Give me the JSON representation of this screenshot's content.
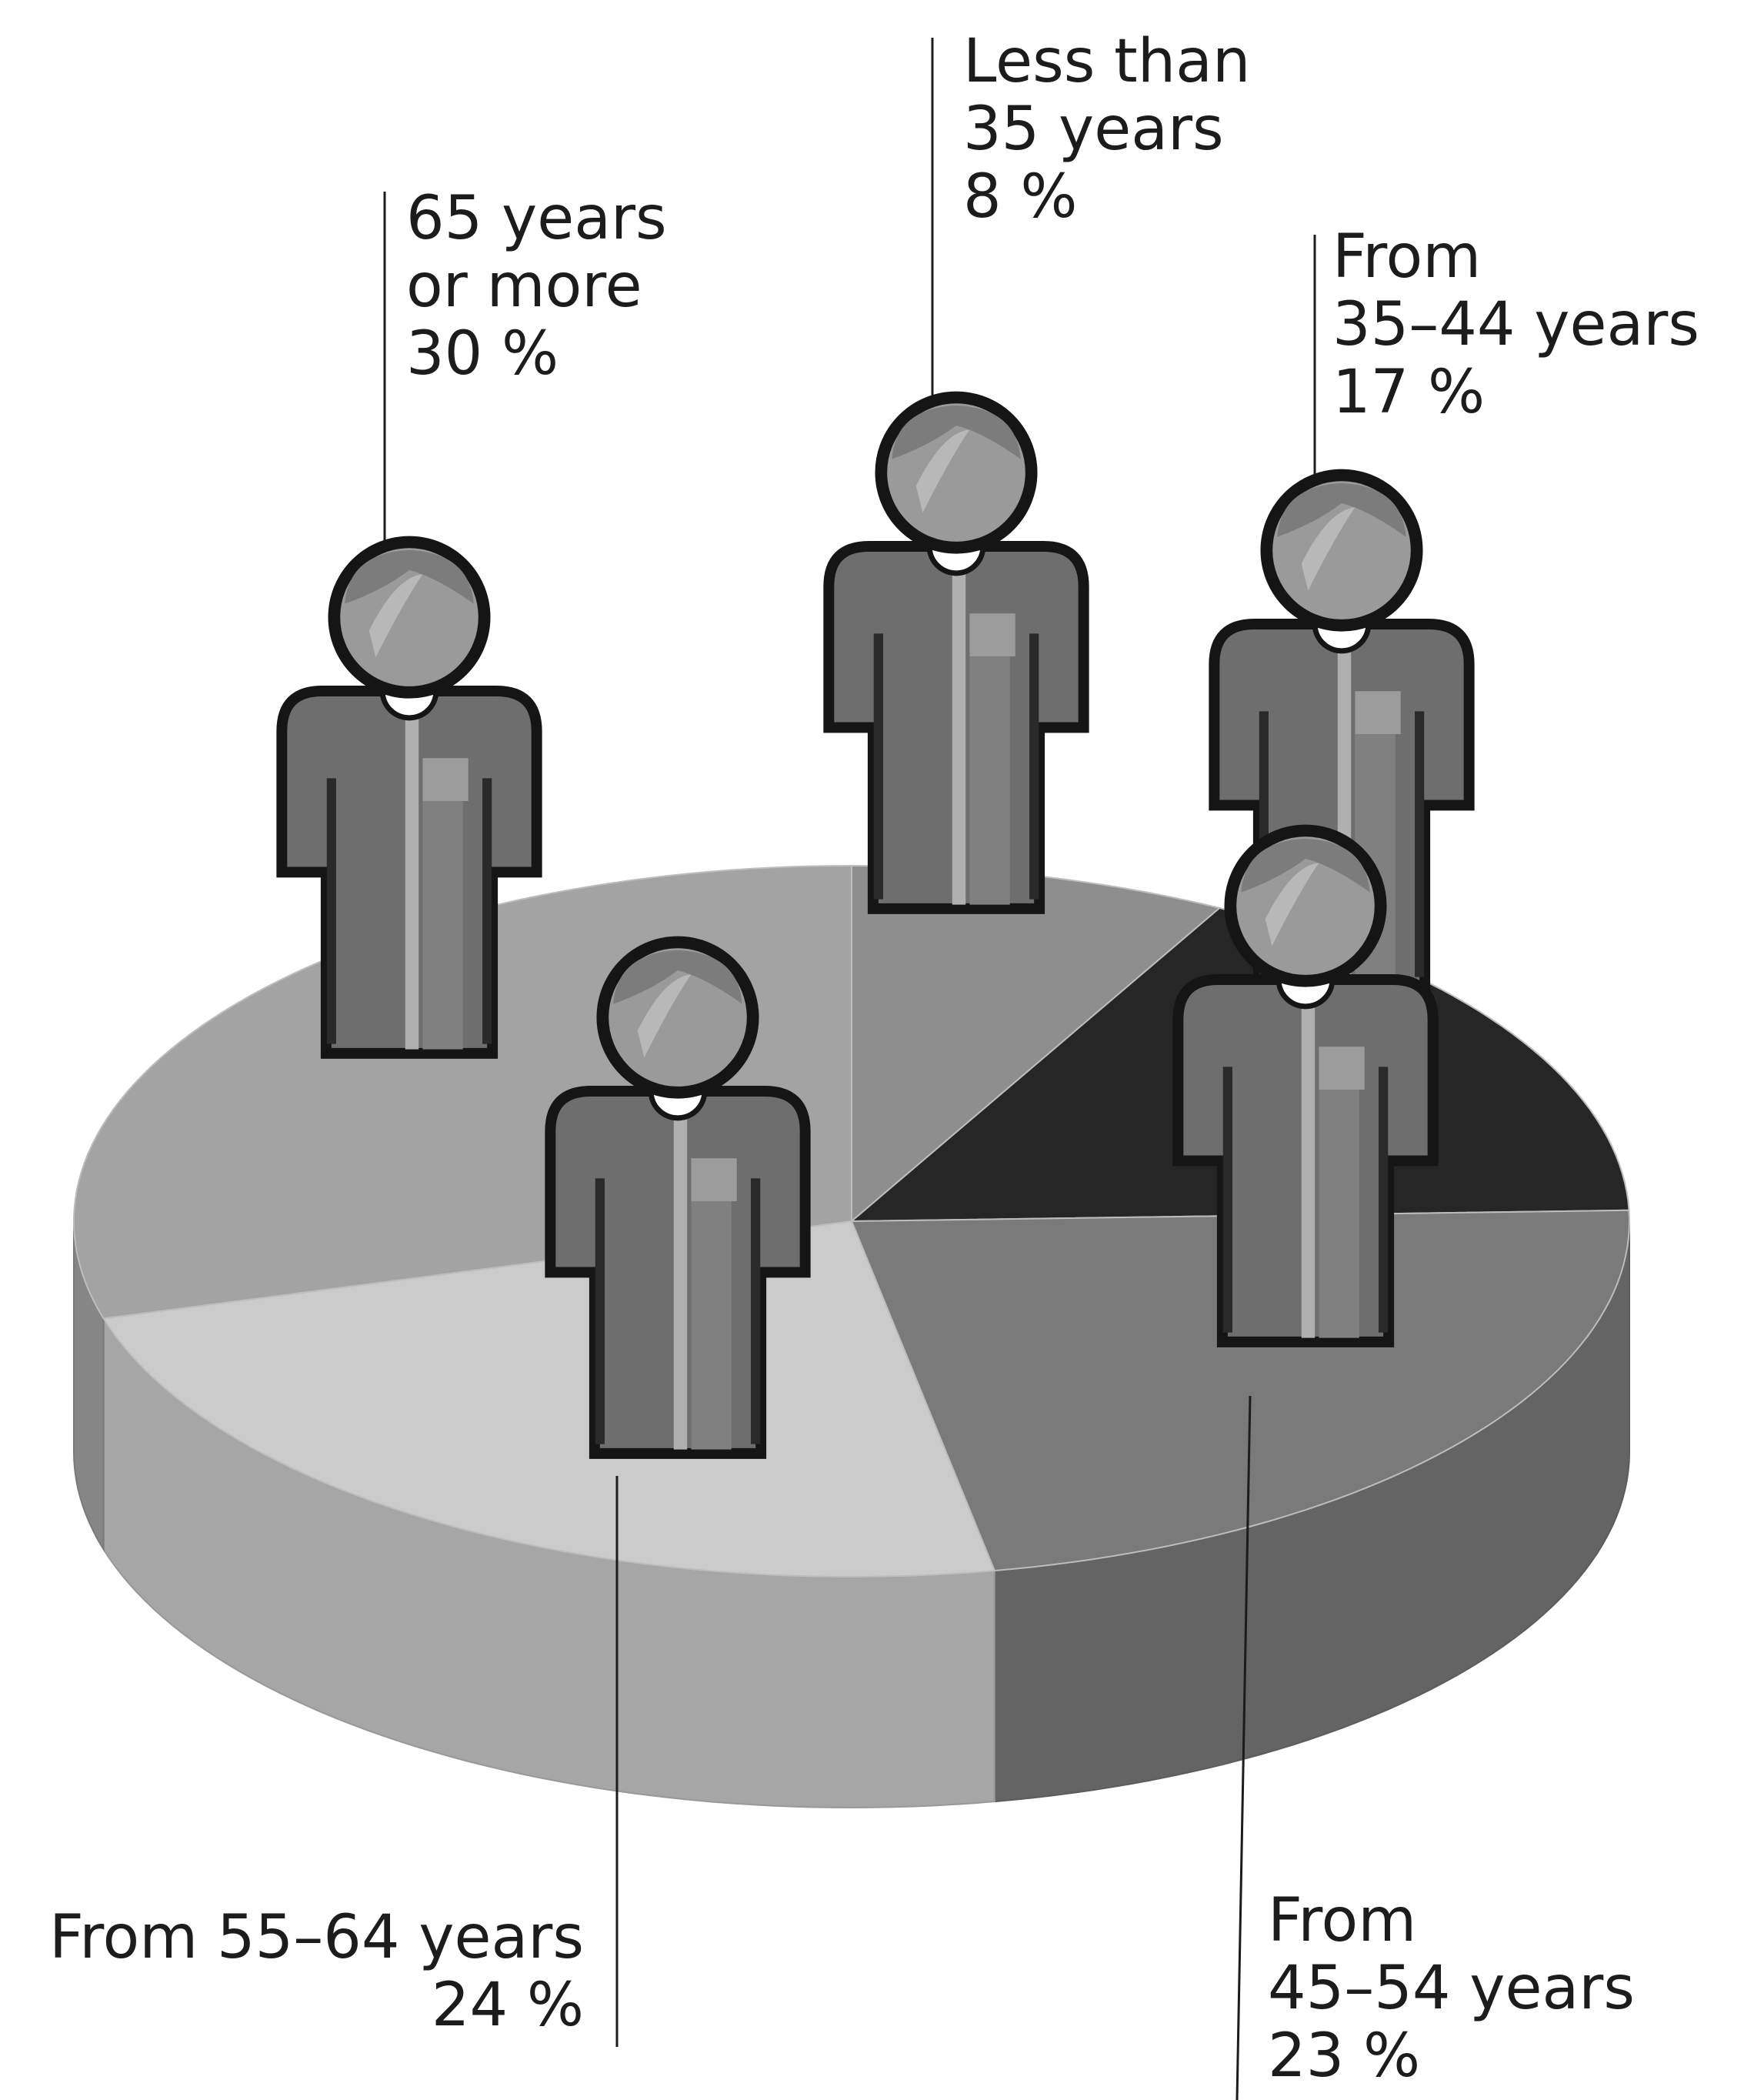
{
  "chart_data": {
    "type": "pie",
    "categories": [
      "Less than\n35 years",
      "From\n35–44 years",
      "From\n45–54 years",
      "From 55–64 years",
      "65 years\nor more"
    ],
    "values": [
      8,
      17,
      23,
      24,
      30
    ],
    "value_labels": [
      "8 %",
      "17 %",
      "23 %",
      "24 %",
      "30 %"
    ],
    "colors": [
      "#8e8e8e",
      "#262626",
      "#7a7a7a",
      "#cbcbcb",
      "#a3a3a3"
    ]
  }
}
